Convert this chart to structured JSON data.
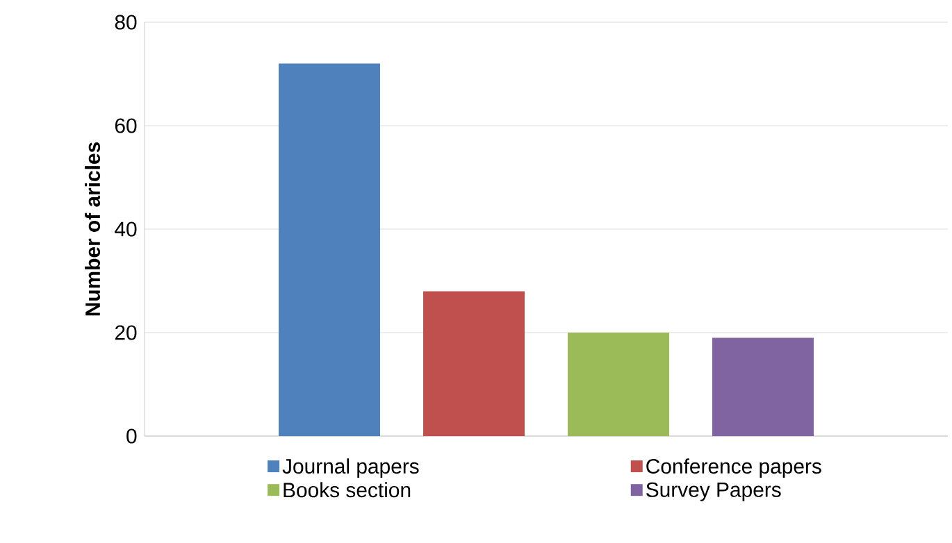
{
  "chart_data": {
    "type": "bar",
    "ylabel": "Number of aricles",
    "categories": [
      null
    ],
    "series": [
      {
        "name": "Journal papers",
        "color": "#4f81bd",
        "values": [
          72
        ]
      },
      {
        "name": "Conference papers",
        "color": "#c0504d",
        "values": [
          28
        ]
      },
      {
        "name": "Books section",
        "color": "#9bbb59",
        "values": [
          20
        ]
      },
      {
        "name": "Survey Papers",
        "color": "#8064a2",
        "values": [
          19
        ]
      }
    ],
    "ylim": [
      0,
      80
    ],
    "yticks": [
      0,
      20,
      40,
      60,
      80
    ],
    "grid": "y",
    "legend": "bottom",
    "tick_labels": "y"
  }
}
